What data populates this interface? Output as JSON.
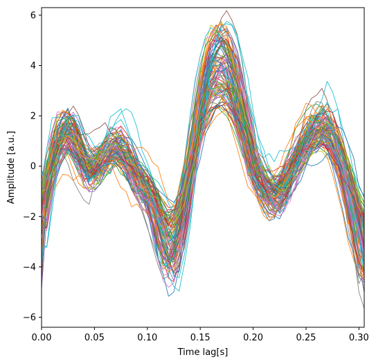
{
  "chart_data": {
    "type": "line",
    "title": "",
    "xlabel": "Time lag[s]",
    "ylabel": "Amplitude [a.u.]",
    "xlim": [
      0.0,
      0.305
    ],
    "ylim": [
      -6.4,
      6.3
    ],
    "xticks": [
      0.0,
      0.05,
      0.1,
      0.15,
      0.2,
      0.25,
      0.3
    ],
    "xtick_labels": [
      "0.00",
      "0.05",
      "0.10",
      "0.15",
      "0.20",
      "0.25",
      "0.30"
    ],
    "yticks": [
      -6,
      -4,
      -2,
      0,
      2,
      4,
      6
    ],
    "ytick_labels": [
      "−6",
      "−4",
      "−2",
      "0",
      "2",
      "4",
      "6"
    ],
    "grid": false,
    "legend": "none",
    "colors": [
      "#1f77b4",
      "#ff7f0e",
      "#2ca02c",
      "#d62728",
      "#9467bd",
      "#8c564b",
      "#e377c2",
      "#7f7f7f",
      "#bcbd22",
      "#17becf"
    ],
    "line_count": 100,
    "x": [
      0.0,
      0.005,
      0.01,
      0.015,
      0.02,
      0.025,
      0.03,
      0.035,
      0.04,
      0.045,
      0.05,
      0.055,
      0.06,
      0.065,
      0.07,
      0.075,
      0.08,
      0.085,
      0.09,
      0.095,
      0.1,
      0.105,
      0.11,
      0.115,
      0.12,
      0.125,
      0.13,
      0.135,
      0.14,
      0.145,
      0.15,
      0.155,
      0.16,
      0.165,
      0.17,
      0.175,
      0.18,
      0.185,
      0.19,
      0.195,
      0.2,
      0.205,
      0.21,
      0.215,
      0.22,
      0.225,
      0.23,
      0.235,
      0.24,
      0.245,
      0.25,
      0.255,
      0.26,
      0.265,
      0.27,
      0.275,
      0.28,
      0.285,
      0.29,
      0.295,
      0.3,
      0.305
    ],
    "mean_waveform": [
      -2.2,
      -0.9,
      0.2,
      0.9,
      1.3,
      1.4,
      1.1,
      0.6,
      0.1,
      -0.2,
      -0.2,
      0.1,
      0.4,
      0.6,
      0.7,
      0.6,
      0.3,
      -0.1,
      -0.5,
      -0.8,
      -1.1,
      -1.6,
      -2.3,
      -3.0,
      -3.4,
      -3.3,
      -2.6,
      -1.5,
      -0.2,
      1.2,
      2.4,
      3.3,
      3.9,
      4.2,
      4.3,
      4.1,
      3.6,
      2.8,
      1.8,
      0.8,
      0.0,
      -0.6,
      -1.0,
      -1.3,
      -1.4,
      -1.2,
      -0.8,
      -0.3,
      0.2,
      0.7,
      1.1,
      1.4,
      1.6,
      1.7,
      1.5,
      1.1,
      0.5,
      -0.2,
      -1.0,
      -1.9,
      -2.8,
      -3.8
    ]
  }
}
